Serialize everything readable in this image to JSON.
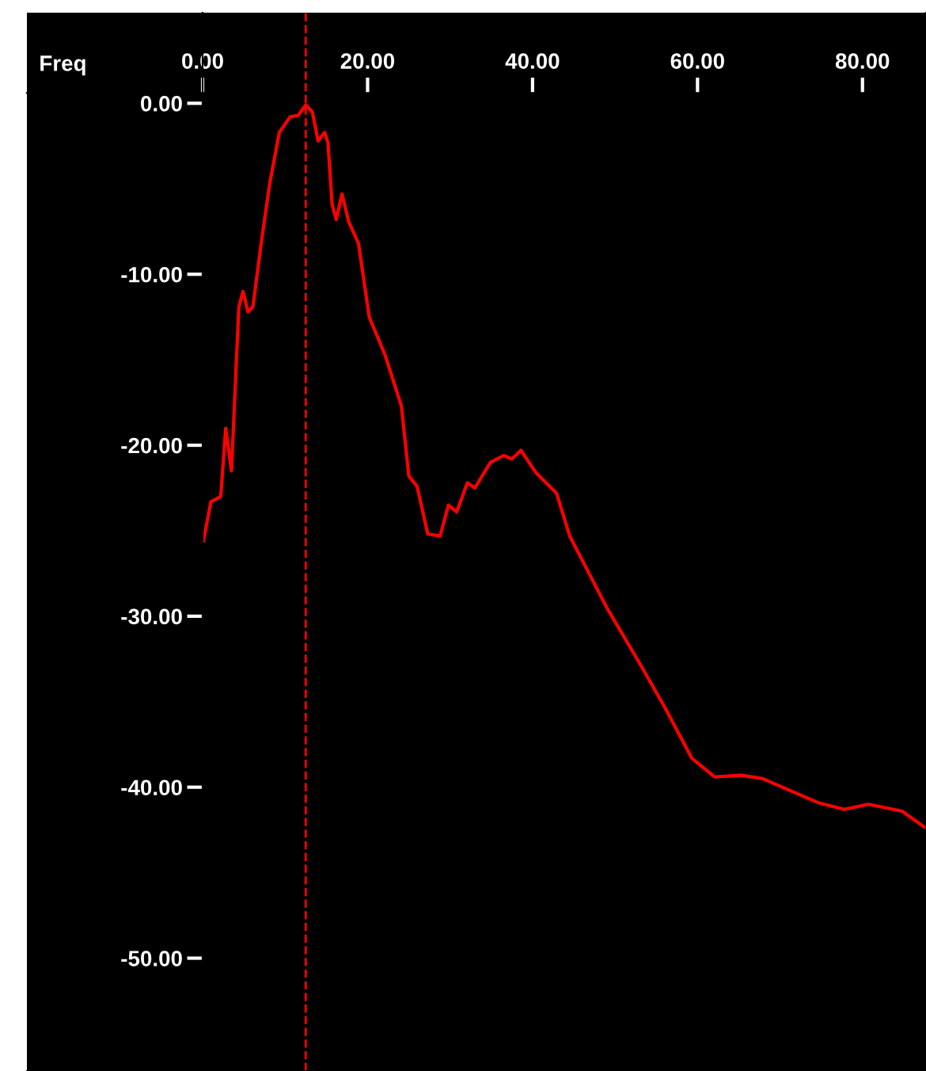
{
  "chart_data": {
    "type": "line",
    "xlabel": "Freq",
    "x": [
      0.1,
      1.0,
      2.2,
      2.8,
      3.5,
      4.1,
      4.4,
      4.9,
      5.5,
      6.1,
      7.1,
      8.1,
      9.3,
      10.6,
      11.6,
      12.5,
      13.3,
      14.0,
      14.8,
      15.2,
      15.7,
      16.2,
      16.9,
      17.7,
      18.9,
      20.2,
      22.1,
      24.1,
      25.0,
      26.0,
      27.3,
      28.8,
      29.8,
      30.8,
      32.1,
      33.0,
      34.9,
      36.5,
      37.5,
      38.6,
      40.4,
      42.9,
      44.5,
      49.0,
      52.8,
      56.0,
      59.3,
      62.1,
      65.3,
      67.9,
      74.6,
      77.8,
      80.7,
      84.8,
      87.7
    ],
    "series": [
      {
        "color": "#ff0000",
        "values": [
          -25.6,
          -23.3,
          -23.0,
          -19.0,
          -21.5,
          -15.0,
          -11.9,
          -11.0,
          -12.2,
          -11.9,
          -8.2,
          -4.8,
          -1.7,
          -0.8,
          -0.7,
          -0.1,
          -0.5,
          -2.2,
          -1.7,
          -2.3,
          -5.9,
          -6.8,
          -5.3,
          -6.9,
          -8.2,
          -12.5,
          -14.7,
          -17.7,
          -21.8,
          -22.4,
          -25.2,
          -25.3,
          -23.5,
          -23.9,
          -22.2,
          -22.5,
          -21.0,
          -20.6,
          -20.8,
          -20.3,
          -21.6,
          -22.8,
          -25.3,
          -29.5,
          -32.6,
          -35.3,
          -38.3,
          -39.4,
          -39.3,
          -39.5,
          -40.9,
          -41.3,
          -41.0,
          -41.4,
          -42.4
        ]
      }
    ],
    "xlim": [
      -21.3,
      87.7
    ],
    "ylim": [
      -56.6,
      5.3
    ],
    "xticks": [
      {
        "value": 0,
        "label": "0.00"
      },
      {
        "value": 20,
        "label": "20.00"
      },
      {
        "value": 40,
        "label": "40.00"
      },
      {
        "value": 60,
        "label": "60.00"
      },
      {
        "value": 80,
        "label": "80.00"
      }
    ],
    "yticks": [
      {
        "value": 0,
        "label": "0.00"
      },
      {
        "value": -10,
        "label": "-10.00"
      },
      {
        "value": -20,
        "label": "-20.00"
      },
      {
        "value": -30,
        "label": "-30.00"
      },
      {
        "value": -40,
        "label": "-40.00"
      },
      {
        "value": -50,
        "label": "-50.00"
      }
    ],
    "ref_lines": [
      {
        "axis": "x",
        "value": 12.5,
        "color": "#ff0000",
        "line_style": "dashed"
      }
    ],
    "grid": false,
    "legend": false,
    "marker": "none",
    "line_style": "solid"
  }
}
